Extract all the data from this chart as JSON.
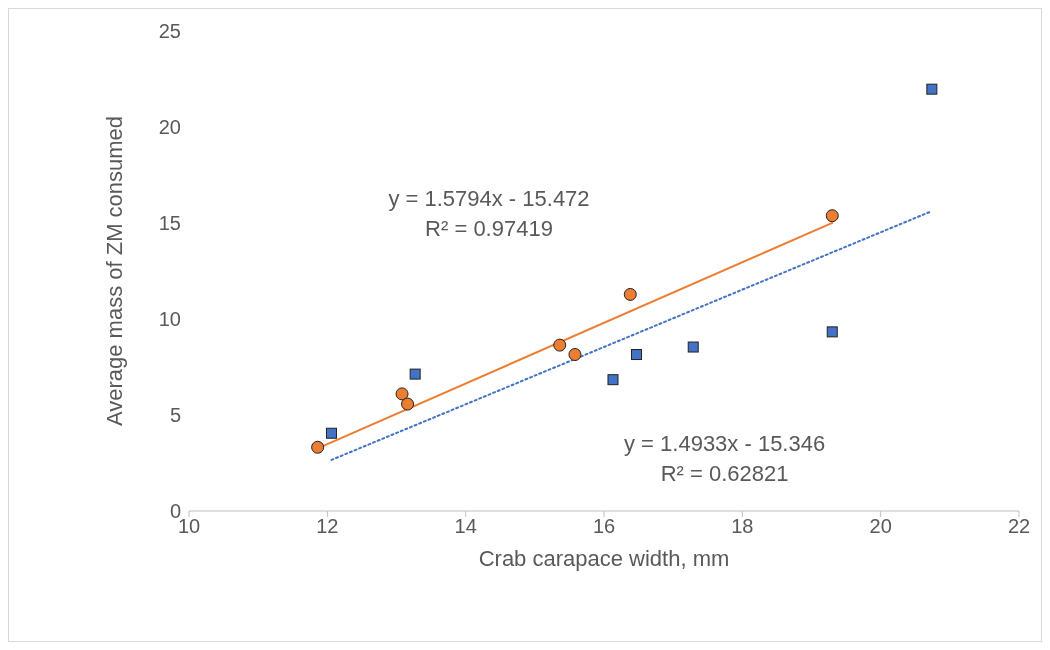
{
  "chart_data": {
    "type": "scatter",
    "xlabel": "Crab carapace width, mm",
    "ylabel": "Average mass of ZM consumed",
    "xlim": [
      10,
      22
    ],
    "xticks": [
      10,
      12,
      14,
      16,
      18,
      20,
      22
    ],
    "ylim": [
      0,
      25
    ],
    "yticks": [
      0,
      5,
      10,
      15,
      20,
      25
    ],
    "series": [
      {
        "marker": "circle",
        "color": "#ed7d31",
        "x": [
          11.86,
          13.08,
          13.16,
          15.36,
          15.58,
          16.38,
          19.3
        ],
        "values": [
          3.32,
          6.1,
          5.57,
          8.64,
          8.15,
          11.28,
          15.38
        ]
      },
      {
        "marker": "square",
        "color": "#4472c4",
        "x": [
          12.06,
          13.27,
          16.13,
          16.47,
          17.29,
          19.3,
          20.74
        ],
        "values": [
          4.05,
          7.13,
          6.84,
          8.15,
          8.54,
          9.33,
          21.97
        ]
      },
      {
        "type": "line",
        "line_style": "solid",
        "color": "#ed7d31",
        "x": [
          11.86,
          19.3
        ],
        "values": [
          3.26,
          15.01
        ]
      },
      {
        "type": "line",
        "line_style": "dotted",
        "color": "#4472c4",
        "x": [
          12.06,
          20.74
        ],
        "values": [
          2.66,
          15.62
        ]
      }
    ],
    "annotations": [
      "y = 1.5794x - 15.472\nR² = 0.97419",
      "y = 1.4933x - 15.346\nR² = 0.62821"
    ]
  }
}
